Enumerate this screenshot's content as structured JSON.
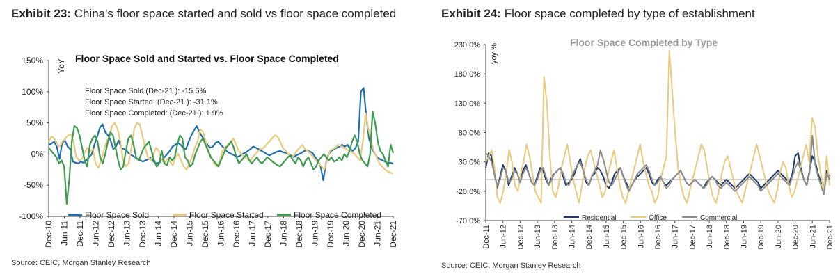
{
  "exhibit23": {
    "number": "Exhibit 23:",
    "title": "China's floor space started and sold vs floor space completed",
    "source": "Source: CEIC, Morgan Stanley Research"
  },
  "exhibit24": {
    "number": "Exhibit 24:",
    "title": "Floor space completed by type of establishment",
    "source": "Source: CEIC, Morgan Stanley Research"
  },
  "chart_data": [
    {
      "type": "line",
      "title": "Floor Space Sold and Started vs. Floor Space Completed",
      "ylabel": "YoY",
      "ylim": [
        -100,
        150
      ],
      "yticks": [
        "150%",
        "100%",
        "50%",
        "0%",
        "-50%",
        "-100%"
      ],
      "yticks_values": [
        150,
        100,
        50,
        0,
        -50,
        -100
      ],
      "x_tick_labels": [
        "Dec-10",
        "Jun-11",
        "Dec-11",
        "Jun-12",
        "Dec-12",
        "Jun-13",
        "Dec-13",
        "Jun-14",
        "Dec-14",
        "Jun-15",
        "Dec-15",
        "Jun-16",
        "Dec-16",
        "Jun-17",
        "Dec-17",
        "Jun-18",
        "Dec-18",
        "Jun-19",
        "Dec-19",
        "Jun-20",
        "Dec-20",
        "Jun-21",
        "Dec-21"
      ],
      "annotations": [
        "Floor Space Sold (Dec-21 ): -15.6%",
        "Floor Space Started: (Dec-21 ): -31.1%",
        "Floor Space Completed: (Dec-21 ): 1.9%"
      ],
      "legend_position": "bottom",
      "series": [
        {
          "name": "Floor Space Sold",
          "color": "#1f6fad",
          "values": [
            15,
            17,
            20,
            12,
            -8,
            18,
            22,
            12,
            8,
            -12,
            -14,
            -15,
            -12,
            -14,
            -10,
            -5,
            0,
            15,
            28,
            42,
            48,
            35,
            30,
            22,
            8,
            12,
            22,
            10,
            8,
            5,
            0,
            -2,
            -5,
            -8,
            -10,
            -12,
            -10,
            -8,
            -5,
            -12,
            -15,
            -14,
            -10,
            -5,
            0,
            5,
            12,
            15,
            18,
            15,
            10,
            8,
            20,
            30,
            38,
            45,
            35,
            28,
            22,
            15,
            10,
            12,
            18,
            20,
            15,
            10,
            5,
            2,
            0,
            -2,
            -5,
            -3,
            0,
            2,
            5,
            8,
            12,
            10,
            8,
            5,
            3,
            0,
            -2,
            0,
            2,
            4,
            5,
            3,
            2,
            0,
            -2,
            -5,
            -2,
            0,
            2,
            5,
            6,
            4,
            2,
            -5,
            -10,
            -20,
            -42,
            -15,
            0,
            5,
            8,
            10,
            12,
            15,
            12,
            15,
            8,
            5,
            10,
            20,
            100,
            106,
            60,
            25,
            10,
            2,
            -5,
            -8,
            -10,
            -12,
            -15,
            -14,
            -15.6
          ]
        },
        {
          "name": "Floor Space Started",
          "color": "#e8c97e",
          "values": [
            20,
            28,
            25,
            18,
            12,
            20,
            25,
            30,
            32,
            20,
            -5,
            -10,
            -8,
            2,
            10,
            5,
            8,
            -15,
            -22,
            -10,
            5,
            20,
            28,
            45,
            50,
            40,
            20,
            -10,
            -20,
            -15,
            10,
            40,
            50,
            48,
            30,
            10,
            -5,
            -10,
            0,
            10,
            5,
            -10,
            -15,
            -8,
            -12,
            -18,
            -5,
            0,
            -10,
            -20,
            -25,
            -15,
            -5,
            10,
            20,
            40,
            35,
            20,
            5,
            -5,
            -15,
            -20,
            -12,
            5,
            10,
            15,
            20,
            25,
            15,
            5,
            0,
            -5,
            -8,
            -10,
            -5,
            0,
            5,
            8,
            10,
            15,
            20,
            25,
            30,
            28,
            20,
            10,
            5,
            0,
            -5,
            -2,
            5,
            10,
            15,
            8,
            5,
            0,
            -5,
            -10,
            -15,
            -20,
            -25,
            -10,
            5,
            8,
            10,
            15,
            12,
            10,
            8,
            5,
            3,
            0,
            -5,
            -10,
            20,
            65,
            40,
            20,
            5,
            -5,
            -15,
            -20,
            -25,
            -28,
            -30,
            -31.1
          ]
        },
        {
          "name": "Floor Space Completed",
          "color": "#3e9b4f",
          "values": [
            10,
            5,
            0,
            -5,
            -15,
            -10,
            -20,
            -80,
            -40,
            20,
            45,
            42,
            30,
            10,
            -10,
            -20,
            15,
            25,
            30,
            20,
            -5,
            -15,
            0,
            20,
            35,
            30,
            10,
            -10,
            -25,
            -20,
            5,
            25,
            30,
            15,
            -5,
            -10,
            0,
            10,
            15,
            20,
            5,
            -10,
            -20,
            -15,
            5,
            -15,
            -18,
            -5,
            -10,
            -5,
            15,
            30,
            25,
            -5,
            -10,
            -20,
            -15,
            0,
            10,
            20,
            25,
            15,
            5,
            -5,
            -10,
            -15,
            -20,
            -10,
            0,
            10,
            15,
            20,
            10,
            -5,
            -15,
            -10,
            -5,
            0,
            -10,
            -15,
            -10,
            -5,
            -12,
            -15,
            -10,
            -5,
            -8,
            -12,
            -15,
            -18,
            -20,
            -15,
            -10,
            -5,
            -2,
            -10,
            -15,
            -5,
            -10,
            -20,
            -10,
            -5,
            -15,
            -25,
            -20,
            -10,
            -5,
            0,
            -5,
            -10,
            -5,
            -12,
            -10,
            -5,
            -10,
            0,
            -5,
            5,
            20,
            30,
            20,
            0,
            -10,
            -15,
            -20,
            0,
            68,
            50,
            20,
            5,
            0,
            -10,
            -20,
            15,
            1.9
          ]
        }
      ]
    },
    {
      "type": "line",
      "title": "Floor Space Completed by Type",
      "ylabel": "yoy %",
      "ylim": [
        -70,
        230
      ],
      "yticks": [
        "230.0%",
        "180.0%",
        "130.0%",
        "80.0%",
        "30.0%",
        "-20.0%",
        "-70.0%"
      ],
      "yticks_values": [
        230,
        180,
        130,
        80,
        30,
        -20,
        -70
      ],
      "x_tick_labels": [
        "Dec-11",
        "Jun-12",
        "Dec-12",
        "Jun-13",
        "Dec-13",
        "Jun-14",
        "Dec-14",
        "Jun-15",
        "Dec-15",
        "Jun-16",
        "Dec-16",
        "Jun-17",
        "Dec-17",
        "Jun-18",
        "Dec-18",
        "Jun-19",
        "Dec-19",
        "Jun-20",
        "Dec-20",
        "Jun-21",
        "Dec-21"
      ],
      "legend_position": "bottom",
      "series": [
        {
          "name": "Residential",
          "color": "#1f3a68",
          "values": [
            20,
            45,
            40,
            10,
            -15,
            5,
            25,
            15,
            -10,
            5,
            20,
            10,
            -5,
            15,
            25,
            10,
            -5,
            -10,
            5,
            20,
            15,
            0,
            -10,
            5,
            10,
            15,
            20,
            5,
            -10,
            -5,
            0,
            10,
            25,
            35,
            15,
            -5,
            -10,
            5,
            10,
            20,
            15,
            5,
            -10,
            -15,
            -5,
            10,
            15,
            20,
            5,
            -5,
            -15,
            -10,
            0,
            5,
            10,
            15,
            20,
            10,
            -5,
            -10,
            0,
            5,
            -5,
            -10,
            -5,
            0,
            5,
            10,
            15,
            5,
            -5,
            -10,
            -5,
            0,
            -5,
            -10,
            -15,
            -5,
            0,
            5,
            0,
            -5,
            -10,
            -5,
            0,
            -5,
            -10,
            -15,
            -10,
            -5,
            0,
            5,
            10,
            5,
            0,
            -5,
            -15,
            -10,
            -5,
            0,
            5,
            10,
            15,
            10,
            5,
            0,
            -5,
            10,
            40,
            45,
            20,
            0,
            -10,
            15,
            40,
            30,
            10,
            -5,
            -10,
            15,
            5
          ]
        },
        {
          "name": "Office",
          "color": "#e8c97e",
          "values": [
            30,
            40,
            50,
            20,
            -30,
            -40,
            -20,
            10,
            50,
            30,
            -10,
            -20,
            10,
            30,
            60,
            40,
            10,
            -20,
            -30,
            -40,
            175,
            130,
            40,
            -20,
            -30,
            -10,
            20,
            40,
            60,
            30,
            0,
            -20,
            -40,
            -10,
            20,
            40,
            50,
            30,
            10,
            -10,
            -30,
            -20,
            10,
            30,
            50,
            20,
            -10,
            -30,
            -40,
            -20,
            0,
            20,
            40,
            60,
            30,
            10,
            -10,
            -20,
            -40,
            -30,
            0,
            20,
            40,
            220,
            150,
            80,
            20,
            -10,
            -30,
            -40,
            -20,
            0,
            20,
            40,
            60,
            50,
            20,
            -10,
            -30,
            -40,
            -20,
            10,
            30,
            40,
            20,
            0,
            -20,
            -30,
            -40,
            -20,
            0,
            20,
            40,
            60,
            40,
            20,
            0,
            -20,
            -30,
            -40,
            -20,
            10,
            30,
            20,
            -10,
            -30,
            -20,
            0,
            20,
            40,
            60,
            30,
            105,
            90,
            40,
            10,
            -20,
            40,
            -10
          ]
        },
        {
          "name": "Commercial",
          "color": "#8c8c8c",
          "values": [
            45,
            40,
            30,
            10,
            -10,
            0,
            20,
            15,
            -5,
            0,
            15,
            10,
            -5,
            10,
            20,
            10,
            -5,
            -10,
            0,
            15,
            20,
            5,
            -10,
            0,
            10,
            15,
            20,
            10,
            -5,
            -10,
            5,
            15,
            25,
            30,
            15,
            0,
            -10,
            5,
            15,
            25,
            50,
            35,
            15,
            -5,
            -10,
            0,
            10,
            20,
            5,
            -10,
            -20,
            -10,
            0,
            10,
            15,
            20,
            25,
            15,
            0,
            -10,
            -5,
            5,
            -5,
            -15,
            -10,
            0,
            5,
            10,
            15,
            5,
            -5,
            -10,
            -5,
            0,
            -5,
            -10,
            -15,
            -10,
            0,
            5,
            0,
            -10,
            -15,
            -10,
            -5,
            -10,
            -15,
            -20,
            -15,
            -10,
            -5,
            0,
            5,
            0,
            -5,
            -10,
            -20,
            -15,
            -10,
            -5,
            0,
            5,
            10,
            5,
            0,
            -5,
            -10,
            5,
            20,
            30,
            15,
            0,
            -10,
            10,
            75,
            25,
            5,
            -10,
            -25,
            10,
            0
          ]
        }
      ]
    }
  ]
}
